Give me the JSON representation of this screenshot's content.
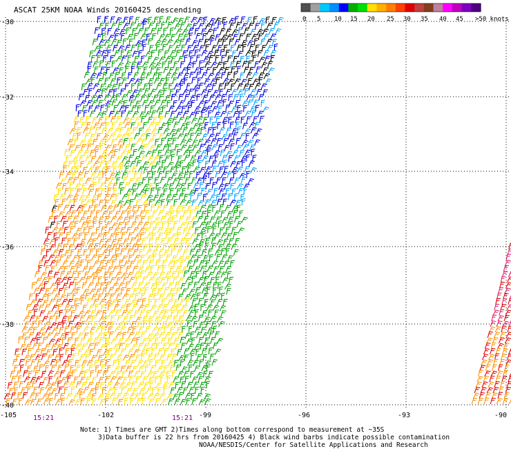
{
  "title": "ASCAT 25KM NOAA Winds 20160425 descending",
  "legend": {
    "colors": [
      "#505050",
      "#a0a0a0",
      "#00c8ff",
      "#0090ff",
      "#0000ff",
      "#00b000",
      "#00e000",
      "#ffe000",
      "#ffb000",
      "#ff8000",
      "#ff4000",
      "#e00000",
      "#c04040",
      "#804020",
      "#c080a0",
      "#ff00ff",
      "#c000c0",
      "#8000c0",
      "#500080"
    ],
    "labels": [
      "0",
      "5",
      "10",
      "15",
      "20",
      "25",
      "30",
      "35",
      "40",
      "45",
      ">50 knots"
    ]
  },
  "lat_labels": [
    "-30",
    "-32",
    "-34",
    "-36",
    "-38",
    "-40"
  ],
  "lon_labels": [
    "-105",
    "-102",
    "-99",
    "-96",
    "-93",
    "-90"
  ],
  "times": [
    "15:21",
    "15:21"
  ],
  "notes": {
    "line1": "Note: 1) Times are GMT 2)Times along bottom correspond to measurement at ~35S",
    "line2": "3)Data buffer is 22 hrs from 20160425 4) Black wind barbs indicate possible contamination",
    "line3": "NOAA/NESDIS/Center for Satellite Applications and Research"
  },
  "colors": {
    "black": "#000000",
    "blue": "#0000e0",
    "cyan": "#00a0ff",
    "green": "#00a000",
    "yellow": "#ffe000",
    "orange": "#ff9000",
    "red": "#e00000",
    "pink": "#e0206a"
  }
}
